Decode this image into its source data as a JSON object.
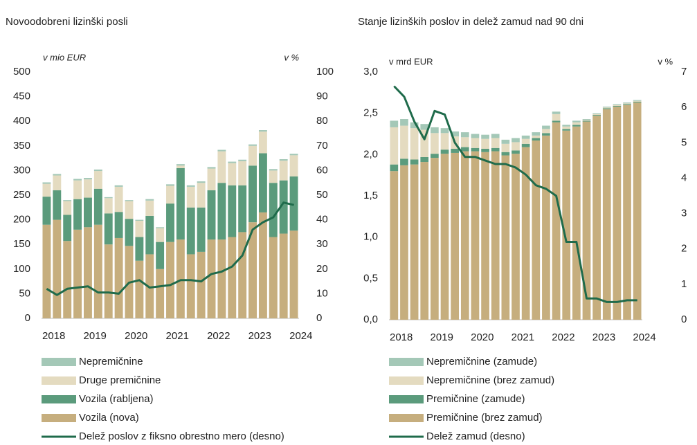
{
  "chart_data": [
    {
      "type": "bar",
      "stacked": true,
      "title": "Novoodobreni lizinški posli",
      "y_unit": "v mio EUR",
      "y2_unit": "v %",
      "categories": [
        "2018",
        null,
        null,
        null,
        "2019",
        null,
        null,
        null,
        "2020",
        null,
        null,
        null,
        "2021",
        null,
        null,
        null,
        "2022",
        null,
        null,
        null,
        "2023",
        null,
        null,
        null,
        "2024"
      ],
      "ylim": [
        0,
        500
      ],
      "yticks": [
        0,
        50,
        100,
        150,
        200,
        250,
        300,
        350,
        400,
        450,
        500
      ],
      "y2lim": [
        0,
        100
      ],
      "y2ticks": [
        0,
        10,
        20,
        30,
        40,
        50,
        60,
        70,
        80,
        90,
        100
      ],
      "series": [
        {
          "name": "Vozila (nova)",
          "color": "#c6ae7e",
          "values": [
            190,
            200,
            157,
            180,
            185,
            190,
            150,
            163,
            147,
            117,
            130,
            100,
            155,
            160,
            130,
            135,
            160,
            160,
            165,
            175,
            195,
            215,
            165,
            172,
            178
          ]
        },
        {
          "name": "Vozila (rabljena)",
          "color": "#5b9b7c",
          "values": [
            57,
            60,
            53,
            62,
            60,
            73,
            63,
            53,
            55,
            48,
            78,
            55,
            78,
            145,
            95,
            90,
            100,
            115,
            105,
            95,
            115,
            120,
            110,
            108,
            110
          ]
        },
        {
          "name": "Druge premičnine",
          "color": "#e4dbc0",
          "values": [
            26,
            30,
            28,
            38,
            37,
            36,
            31,
            51,
            36,
            33,
            31,
            28,
            36,
            5,
            42,
            50,
            44,
            64,
            45,
            49,
            40,
            44,
            25,
            40,
            43
          ]
        },
        {
          "name": "Nepremičnine",
          "color": "#a4c8b7",
          "values": [
            3,
            3,
            2,
            3,
            3,
            3,
            2,
            3,
            2,
            2,
            3,
            2,
            3,
            3,
            3,
            3,
            3,
            3,
            3,
            3,
            3,
            3,
            3,
            3,
            3
          ]
        },
        {
          "name": "Delež poslov z fiksno obrestno mero (desno)",
          "type": "line",
          "axis": "y2",
          "color": "#1f6b4b",
          "values": [
            12,
            9.5,
            12,
            12.5,
            13,
            10.5,
            10.5,
            10,
            14.5,
            15.5,
            12.5,
            13,
            13.5,
            15.5,
            15.5,
            15,
            18,
            19,
            21,
            25.5,
            36,
            39,
            41,
            47,
            46
          ]
        }
      ]
    },
    {
      "type": "bar",
      "stacked": true,
      "title": "Stanje lizinških poslov in delež zamud nad 90 dni",
      "y_unit": "v mrd EUR",
      "y2_unit": "v %",
      "categories": [
        "2018",
        null,
        null,
        null,
        "2019",
        null,
        null,
        null,
        "2020",
        null,
        null,
        null,
        "2021",
        null,
        null,
        null,
        "2022",
        null,
        null,
        null,
        "2023",
        null,
        null,
        null,
        "2024"
      ],
      "ylim": [
        0,
        3
      ],
      "yticks": [
        {
          "value": 0,
          "label": "0,0"
        },
        {
          "value": 0.5,
          "label": "0,5"
        },
        {
          "value": 1,
          "label": "1,0"
        },
        {
          "value": 1.5,
          "label": "1,5"
        },
        {
          "value": 2,
          "label": "2,0"
        },
        {
          "value": 2.5,
          "label": "2,5"
        },
        {
          "value": 3,
          "label": "3,0"
        }
      ],
      "y2lim": [
        0,
        7
      ],
      "y2ticks": [
        0,
        1,
        2,
        3,
        4,
        5,
        6,
        7
      ],
      "series": [
        {
          "name": "Premičnine (brez zamud)",
          "color": "#c6ae7e",
          "values": [
            1.8,
            1.87,
            1.88,
            1.91,
            1.96,
            2.01,
            2.02,
            2.04,
            2.04,
            2.03,
            2.04,
            1.99,
            2.01,
            2.09,
            2.17,
            2.23,
            2.39,
            2.29,
            2.34,
            2.4,
            2.47,
            2.55,
            2.58,
            2.6,
            2.63
          ]
        },
        {
          "name": "Premičnine (zamude)",
          "color": "#5b9b7c",
          "values": [
            0.08,
            0.08,
            0.06,
            0.06,
            0.05,
            0.05,
            0.05,
            0.05,
            0.04,
            0.04,
            0.04,
            0.04,
            0.04,
            0.04,
            0.03,
            0.03,
            0.02,
            0.02,
            0.02,
            0.01,
            0.01,
            0.01,
            0.01,
            0.01,
            0.01
          ]
        },
        {
          "name": "Nepremičnine (brez zamud)",
          "color": "#e4dbc0",
          "values": [
            0.45,
            0.4,
            0.38,
            0.33,
            0.25,
            0.2,
            0.15,
            0.12,
            0.12,
            0.12,
            0.12,
            0.1,
            0.1,
            0.06,
            0.03,
            0.05,
            0.08,
            0.03,
            0.03,
            0.01,
            0.01,
            0.01,
            0.01,
            0.01,
            0.01
          ]
        },
        {
          "name": "Nepremičnine (zamude)",
          "color": "#a4c8b7",
          "values": [
            0.08,
            0.08,
            0.07,
            0.07,
            0.07,
            0.06,
            0.06,
            0.06,
            0.05,
            0.05,
            0.05,
            0.05,
            0.05,
            0.04,
            0.04,
            0.04,
            0.03,
            0.02,
            0.02,
            0.01,
            0.01,
            0.01,
            0.01,
            0.01,
            0.01
          ]
        },
        {
          "name": "Delež zamud (desno)",
          "type": "line",
          "axis": "y2",
          "color": "#1f6b4b",
          "values": [
            6.6,
            6.3,
            5.6,
            5.1,
            5.9,
            5.8,
            5.0,
            4.6,
            4.6,
            4.5,
            4.4,
            4.4,
            4.3,
            4.1,
            3.8,
            3.7,
            3.5,
            2.2,
            2.2,
            0.6,
            0.6,
            0.5,
            0.5,
            0.55,
            0.55
          ]
        }
      ]
    }
  ]
}
